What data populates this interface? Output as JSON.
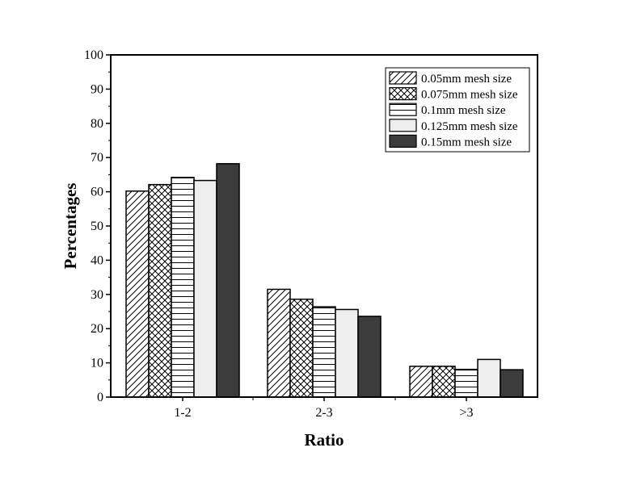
{
  "chart_data": {
    "type": "bar",
    "title": "",
    "xlabel": "Ratio",
    "ylabel": "Percentages",
    "ylim": [
      0,
      100
    ],
    "yticks": [
      "0",
      "10",
      "20",
      "30",
      "40",
      "50",
      "60",
      "70",
      "80",
      "90",
      "100"
    ],
    "categories": [
      "1-2",
      "2-3",
      ">3"
    ],
    "series": [
      {
        "name": "0.05mm mesh size",
        "pattern": "diagonal-hatch",
        "color": "#000000",
        "values": [
          60.2,
          31.5,
          9.0
        ]
      },
      {
        "name": "0.075mm mesh size",
        "pattern": "cross-hatch",
        "color": "#000000",
        "values": [
          62.1,
          28.6,
          9.0
        ]
      },
      {
        "name": "0.1mm mesh size",
        "pattern": "horizontal-lines",
        "color": "#000000",
        "values": [
          64.2,
          26.4,
          8.1
        ]
      },
      {
        "name": "0.125mm mesh size",
        "pattern": "light-fill",
        "color": "#eeeeee",
        "values": [
          63.3,
          25.6,
          11.0
        ]
      },
      {
        "name": "0.15mm mesh size",
        "pattern": "solid",
        "color": "#3c3c3c",
        "values": [
          68.2,
          23.6,
          8.0
        ]
      }
    ],
    "legend_position": "top-right",
    "grid": false
  }
}
